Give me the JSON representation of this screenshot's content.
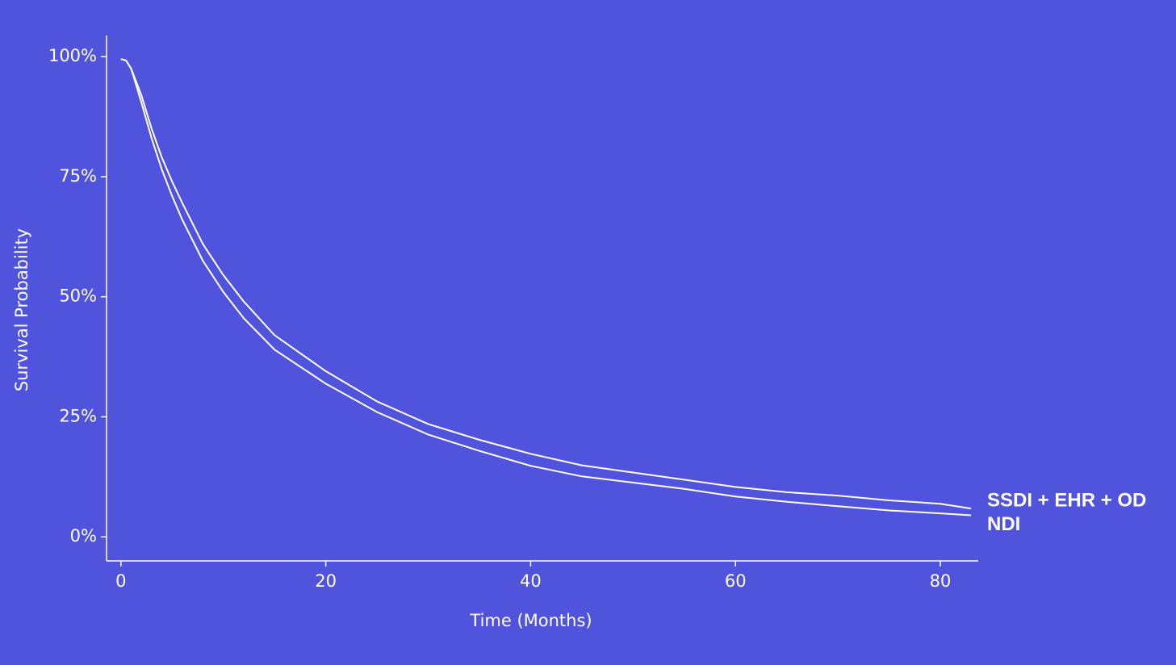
{
  "chart_data": {
    "type": "line",
    "x_label": "Time (Months)",
    "y_label": "Survival Probability",
    "x": [
      0,
      0.5,
      1,
      2,
      3,
      4,
      5,
      6,
      8,
      10,
      12,
      15,
      20,
      25,
      30,
      35,
      40,
      45,
      50,
      55,
      60,
      65,
      70,
      75,
      80,
      83
    ],
    "series": [
      {
        "name": "SSDI + EHR + OD",
        "color": "#ffffff",
        "values": [
          99.5,
          99.2,
          97.5,
          92,
          85,
          79,
          74,
          69.5,
          61,
          54.5,
          49,
          42,
          34.5,
          28.2,
          23.5,
          20.2,
          17.3,
          14.9,
          13.4,
          11.9,
          10.4,
          9.3,
          8.6,
          7.6,
          6.9,
          5.9
        ]
      },
      {
        "name": "NDI",
        "color": "#ffffff",
        "values": [
          99.5,
          99.2,
          97.5,
          90.5,
          83,
          76.5,
          71,
          66,
          57.5,
          51,
          45.5,
          39,
          31.9,
          26,
          21.3,
          17.9,
          14.8,
          12.6,
          11.3,
          10,
          8.4,
          7.3,
          6.4,
          5.5,
          4.9,
          4.5
        ]
      }
    ],
    "xlim": [
      -1.4,
      83.7
    ],
    "xticks": [
      0,
      20,
      40,
      60,
      80
    ],
    "ylim": [
      -5,
      104.4
    ],
    "yticks": [
      {
        "value": 0,
        "label": "0%"
      },
      {
        "value": 25,
        "label": "25%"
      },
      {
        "value": 50,
        "label": "50%"
      },
      {
        "value": 75,
        "label": "75%"
      },
      {
        "value": 100,
        "label": "100%"
      }
    ],
    "grid": false
  }
}
